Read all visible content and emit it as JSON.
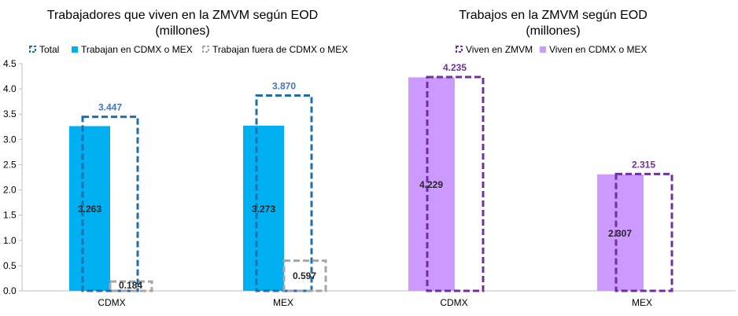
{
  "chart_data": [
    {
      "type": "bar",
      "title": "Trabajadores que viven en la ZMVM según EOD",
      "subtitle": "(millones)",
      "categories": [
        "CDMX",
        "MEX"
      ],
      "ylim": [
        0,
        4.5
      ],
      "yticks": [
        "0.0",
        "0.5",
        "1.0",
        "1.5",
        "2.0",
        "2.5",
        "3.0",
        "3.5",
        "4.0",
        "4.5"
      ],
      "legend_position": "top-left",
      "series": [
        {
          "name": "Total",
          "values": [
            3.447,
            3.87
          ],
          "labels": [
            "3.447",
            "3.870"
          ],
          "style": "dashed-outline",
          "color": "#1F6FAE",
          "label_color": "#4472C4"
        },
        {
          "name": "Trabajan en CDMX o MEX",
          "values": [
            3.263,
            3.273
          ],
          "labels": [
            "3.263",
            "3.273"
          ],
          "style": "solid",
          "color": "#00B0F0",
          "label_color": "#262626"
        },
        {
          "name": "Trabajan fuera de CDMX o MEX",
          "values": [
            0.184,
            0.597
          ],
          "labels": [
            "0.184",
            "0.597"
          ],
          "style": "dashed-outline",
          "color": "#A6A6A6",
          "label_color": "#262626"
        }
      ]
    },
    {
      "type": "bar",
      "title": "Trabajos en la ZMVM según EOD",
      "subtitle": "(millones)",
      "categories": [
        "CDMX",
        "MEX"
      ],
      "ylim": [
        0,
        4.5
      ],
      "legend_position": "top-left",
      "series": [
        {
          "name": "Viven en ZMVM",
          "values": [
            4.235,
            2.315
          ],
          "labels": [
            "4.235",
            "2.315"
          ],
          "style": "dashed-outline",
          "color": "#7030A0",
          "label_color": "#7030A0"
        },
        {
          "name": "Viven en CDMX o MEX",
          "values": [
            4.229,
            2.307
          ],
          "labels": [
            "4.229",
            "2.307"
          ],
          "style": "solid",
          "color": "#CC99FF",
          "label_color": "#262626"
        }
      ]
    }
  ]
}
